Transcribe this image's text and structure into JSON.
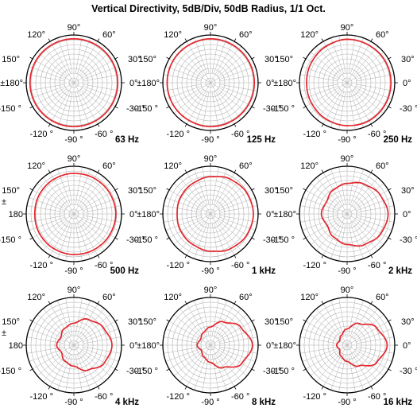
{
  "title": "Vertical Directivity, 5dB/Div, 50dB Radius, 1/1 Oct.",
  "colors": {
    "curve": "#e3262d",
    "outer_ring": "#000000",
    "grid": "#b0b0b0",
    "background": "#ffffff"
  },
  "chart_data": [
    {
      "type": "polar",
      "label": "63 Hz",
      "rlim": [
        0,
        50
      ],
      "r_step_db": 5,
      "angles_deg": [
        0,
        30,
        60,
        90,
        120,
        150,
        180,
        -150,
        -120,
        -90,
        -60,
        -30
      ],
      "values": [
        46,
        46,
        46,
        46,
        46,
        46,
        46,
        46,
        46,
        46,
        46,
        46
      ],
      "labels": {
        "a90": "90°",
        "a60": "60°",
        "a30": "30°",
        "a0": "0°",
        "am30": "-30 °",
        "am60": "-60 °",
        "am90": "-90 °",
        "am120": "-120 °",
        "am150": "-150 °",
        "a180": "±180°",
        "a150": "150°",
        "a120": "120°"
      }
    },
    {
      "type": "polar",
      "label": "125 Hz",
      "rlim": [
        0,
        50
      ],
      "r_step_db": 5,
      "angles_deg": [
        0,
        30,
        60,
        90,
        120,
        150,
        180,
        -150,
        -120,
        -90,
        -60,
        -30
      ],
      "values": [
        46,
        46,
        46,
        46,
        45.5,
        45.5,
        45.5,
        45.5,
        45.5,
        46,
        46,
        46
      ],
      "labels": {
        "a90": "90°",
        "a60": "60°",
        "a30": "30°",
        "a0": "0°",
        "am30": "-30 °",
        "am60": "-60 °",
        "am90": "-90 °",
        "am120": "-120 °",
        "am150": "-150 °",
        "a180": "±180°",
        "a150": "150°",
        "a120": "120°"
      }
    },
    {
      "type": "polar",
      "label": "250 Hz",
      "rlim": [
        0,
        50
      ],
      "r_step_db": 5,
      "angles_deg": [
        0,
        30,
        60,
        90,
        120,
        150,
        180,
        -150,
        -120,
        -90,
        -60,
        -30
      ],
      "values": [
        46,
        46,
        45.5,
        45.5,
        44,
        43,
        42.5,
        43,
        44,
        45,
        46,
        46
      ],
      "labels": {
        "a90": "90°",
        "a60": "60°",
        "a30": "30°",
        "a0": "0°",
        "am30": "-30 °",
        "am60": "-60 °",
        "am90": "-90 °",
        "am120": "-120 °",
        "am150": "-150 °",
        "a180": "±180°",
        "a150": "150°",
        "a120": "120°"
      }
    },
    {
      "type": "polar",
      "label": "500 Hz",
      "rlim": [
        0,
        50
      ],
      "r_step_db": 5,
      "angles_deg": [
        0,
        30,
        60,
        90,
        120,
        150,
        180,
        -150,
        -120,
        -90,
        -60,
        -30
      ],
      "values": [
        44,
        43.5,
        43,
        42.5,
        42,
        41.5,
        41,
        41.5,
        42,
        42.5,
        43,
        43.5
      ],
      "labels": {
        "a90": "90°",
        "a60": "60°",
        "a30": "30°",
        "a0": "0°",
        "am30": "-30 °",
        "am60": "-60 °",
        "am90": "-90 °",
        "am120": "-120 °",
        "am150": "-150 °",
        "a180": "180",
        "a180_pre": "±",
        "a150": "150°",
        "a120": "120°"
      }
    },
    {
      "type": "polar",
      "label": "1 kHz",
      "rlim": [
        0,
        50
      ],
      "r_step_db": 5,
      "angles_deg": [
        0,
        30,
        60,
        90,
        120,
        150,
        180,
        -150,
        -120,
        -90,
        -60,
        -30
      ],
      "values": [
        45,
        44,
        42,
        39,
        37,
        36,
        35,
        36,
        37,
        39,
        42,
        44
      ],
      "labels": {
        "a90": "90°",
        "a60": "60°",
        "a30": "30°",
        "a0": "0°",
        "am30": "-30 °",
        "am60": "-60 °",
        "am90": "-90 °",
        "am120": "-120 °",
        "am150": "-150 °",
        "a180": "±180°",
        "a150": "150°",
        "a120": "120°"
      }
    },
    {
      "type": "polar",
      "label": "2 kHz",
      "rlim": [
        0,
        50
      ],
      "r_step_db": 5,
      "angles_deg": [
        0,
        30,
        60,
        90,
        120,
        150,
        180,
        -150,
        -120,
        -90,
        -60,
        -30
      ],
      "values": [
        43,
        40,
        36,
        32,
        29,
        25,
        27,
        24,
        28,
        32,
        37,
        41
      ],
      "labels": {
        "a90": "90°",
        "a60": "60°",
        "a30": "30°",
        "a0": "0°",
        "am30": "-30 °",
        "am60": "-60 °",
        "am90": "-90 °",
        "am120": "-120 °",
        "am150": "-150 °",
        "a180": "±180°",
        "a150": "150°",
        "a120": "120°"
      }
    },
    {
      "type": "polar",
      "label": "4 kHz",
      "rlim": [
        0,
        50
      ],
      "r_step_db": 5,
      "angles_deg": [
        0,
        30,
        60,
        90,
        120,
        150,
        180,
        -150,
        -120,
        -90,
        -60,
        -30
      ],
      "values": [
        40,
        36,
        31,
        23,
        20,
        16,
        18,
        15,
        19,
        22,
        30,
        37
      ],
      "labels": {
        "a90": "90°",
        "a60": "60°",
        "a30": "30°",
        "a0": "0°",
        "am30": "-30 °",
        "am60": "-60 °",
        "am90": "-90 °",
        "am120": "-120 °",
        "am150": "-150 °",
        "a180": "180",
        "a180_pre": "±",
        "a150": "150°",
        "a120": "120°"
      }
    },
    {
      "type": "polar",
      "label": "8 kHz",
      "rlim": [
        0,
        50
      ],
      "r_step_db": 5,
      "angles_deg": [
        0,
        30,
        60,
        90,
        120,
        150,
        180,
        -150,
        -120,
        -90,
        -60,
        -30
      ],
      "values": [
        44,
        37,
        28,
        19,
        15,
        12,
        14,
        11,
        14,
        18,
        27,
        38
      ],
      "labels": {
        "a90": "90°",
        "a60": "60°",
        "a30": "30°",
        "a0": "0°",
        "am30": "-30 °",
        "am60": "-60 °",
        "am90": "-90 °",
        "am120": "-120 °",
        "am150": "-150 °",
        "a180": "±180°",
        "a150": "150°",
        "a120": "120°"
      }
    },
    {
      "type": "polar",
      "label": "16 kHz",
      "rlim": [
        0,
        50
      ],
      "r_step_db": 5,
      "angles_deg": [
        0,
        30,
        60,
        90,
        120,
        150,
        180,
        -150,
        -120,
        -90,
        -60,
        -30
      ],
      "values": [
        42,
        36,
        26,
        17,
        12,
        9,
        11,
        9,
        13,
        17,
        25,
        36
      ],
      "labels": {
        "a90": "90°",
        "a60": "60°",
        "a30": "30°",
        "a0": "0°",
        "am30": "-30 °",
        "am60": "-60 °",
        "am90": "-90 °",
        "am120": "-120 °",
        "am150": "-150 °",
        "a180": "±180°",
        "a150": "150°",
        "a120": "120°"
      }
    }
  ]
}
